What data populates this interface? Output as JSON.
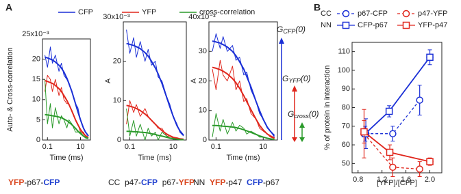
{
  "panel_labels": [
    "A",
    "B"
  ],
  "captions": [
    [
      {
        "text": "YFP",
        "color": "#d9441c"
      },
      {
        "text": "-p67-"
      },
      {
        "text": "CFP",
        "color": "#1f3fcf"
      }
    ],
    [
      {
        "text": "CC  p47-"
      },
      {
        "text": "CFP",
        "color": "#1f3fcf"
      },
      {
        "text": "  p67-"
      },
      {
        "text": "YFP",
        "color": "#d9441c"
      }
    ],
    [
      {
        "text": "NN  "
      },
      {
        "text": "YFP",
        "color": "#d9441c"
      },
      {
        "text": "-p47  "
      },
      {
        "text": "CFP",
        "color": "#1f3fcf"
      },
      {
        "text": "-p67"
      }
    ]
  ],
  "chart_data": [
    {
      "type": "line",
      "x_label": "Time (ms)",
      "y_label": "Auto- & Cross-correlation",
      "xlog": true,
      "xlim": [
        0.05,
        40
      ],
      "xticks": [
        0.1,
        10
      ],
      "ylim": [
        0,
        25
      ],
      "yticks": [
        0,
        5,
        10,
        15,
        20,
        {
          "value": 25,
          "label": "25x10⁻³"
        }
      ],
      "x": [
        0.07,
        0.1,
        0.15,
        0.2,
        0.3,
        0.5,
        0.7,
        1,
        1.5,
        2,
        3,
        5,
        7,
        10,
        15,
        20,
        30
      ],
      "series": [
        {
          "name": "CFP",
          "color": "#1a2fd6",
          "values": [
            21,
            18,
            23,
            19,
            21,
            17,
            19,
            16,
            15,
            14,
            12,
            9,
            8,
            5,
            3,
            2,
            1
          ]
        },
        {
          "name": "YFP",
          "color": "#e0261c",
          "values": [
            12,
            16,
            15,
            12,
            15,
            11,
            13,
            10,
            9,
            9,
            7,
            5,
            4,
            2,
            2,
            1,
            0.5
          ]
        },
        {
          "name": "cross-correlation",
          "color": "#2a9a2a",
          "values": [
            15,
            4,
            9,
            3,
            8,
            4,
            6,
            5,
            3,
            5,
            4,
            2,
            2,
            2,
            1,
            0.5,
            0.3
          ]
        },
        {
          "color": "#1a2fd6",
          "fit": true,
          "values": [
            20.5,
            20.3,
            20,
            19.8,
            19.3,
            18.5,
            17.8,
            16.8,
            15.3,
            14,
            12,
            9,
            7,
            5,
            3,
            2,
            1
          ]
        },
        {
          "color": "#e0261c",
          "fit": true,
          "values": [
            14.7,
            14.5,
            14.2,
            14,
            13.5,
            12.7,
            12,
            11,
            9.8,
            8.8,
            7.2,
            5,
            3.8,
            2.6,
            1.6,
            1.1,
            0.6
          ]
        },
        {
          "color": "#2a9a2a",
          "fit": true,
          "values": [
            6.3,
            6.2,
            6.1,
            6,
            5.9,
            5.7,
            5.5,
            5.2,
            4.8,
            4.4,
            3.8,
            2.9,
            2.2,
            1.6,
            1,
            0.7,
            0.4
          ]
        }
      ]
    },
    {
      "type": "line",
      "x_label": "Time (ms)",
      "y_label": "A",
      "xlog": true,
      "xlim": [
        0.05,
        40
      ],
      "xticks": [
        0.1,
        10
      ],
      "ylim": [
        0,
        30
      ],
      "yticks": [
        0,
        10,
        20,
        {
          "value": 30,
          "label": "30x10⁻³"
        }
      ],
      "x": [
        0.07,
        0.1,
        0.15,
        0.2,
        0.3,
        0.5,
        0.7,
        1,
        1.5,
        2,
        3,
        5,
        7,
        10,
        15,
        20,
        30
      ],
      "series": [
        {
          "color": "#1a2fd6",
          "values": [
            28,
            22,
            26,
            21,
            25,
            20,
            23,
            19,
            20,
            16,
            15,
            11,
            9,
            6,
            4,
            2,
            1
          ]
        },
        {
          "color": "#e0261c",
          "values": [
            4,
            10,
            7,
            9,
            6,
            8,
            6,
            5,
            4,
            3,
            3,
            1,
            1,
            0.5,
            0.3,
            0.2,
            0
          ]
        },
        {
          "color": "#2a9a2a",
          "values": [
            8,
            1,
            5,
            1,
            4,
            0,
            3,
            1,
            2,
            0,
            2,
            1,
            0.5,
            0.5,
            0.2,
            0.1,
            0
          ]
        },
        {
          "color": "#1a2fd6",
          "fit": true,
          "values": [
            24.5,
            24.3,
            24,
            23.7,
            23.2,
            22.2,
            21.3,
            20,
            18.3,
            16.8,
            14.4,
            10.8,
            8.4,
            6,
            3.6,
            2.4,
            1.2
          ]
        },
        {
          "color": "#e0261c",
          "fit": true,
          "values": [
            8.8,
            8.6,
            8.3,
            8,
            7.5,
            6.6,
            5.9,
            5,
            4,
            3.3,
            2.4,
            1.5,
            1.1,
            0.7,
            0.5,
            0.3,
            0.2
          ]
        },
        {
          "color": "#2a9a2a",
          "fit": true,
          "values": [
            2.2,
            2.2,
            2.1,
            2.1,
            2,
            1.9,
            1.8,
            1.6,
            1.4,
            1.2,
            1,
            0.7,
            0.5,
            0.3,
            0.2,
            0.1,
            0.1
          ]
        }
      ]
    },
    {
      "type": "line",
      "x_label": "Time (ms)",
      "y_label": "A",
      "xlog": true,
      "xlim": [
        0.05,
        40
      ],
      "xticks": [
        0.1,
        10
      ],
      "ylim": [
        0,
        40
      ],
      "yticks": [
        0,
        10,
        20,
        30,
        {
          "value": 40,
          "label": "40x10⁻³"
        }
      ],
      "x": [
        0.07,
        0.1,
        0.15,
        0.2,
        0.3,
        0.5,
        0.7,
        1,
        1.5,
        2,
        3,
        5,
        7,
        10,
        15,
        20,
        30
      ],
      "annotations": [
        {
          "text": "G",
          "sub": "CFP",
          "tail": "(0)"
        },
        {
          "text": "G",
          "sub": "YFP",
          "tail": "(0)"
        },
        {
          "text": "G",
          "sub": "cross",
          "tail": "(0)"
        }
      ],
      "series": [
        {
          "color": "#1a2fd6",
          "values": [
            30,
            36,
            31,
            35,
            30,
            32,
            27,
            28,
            22,
            23,
            17,
            13,
            9,
            7,
            4,
            3,
            1
          ]
        },
        {
          "color": "#e0261c",
          "values": [
            24,
            17,
            27,
            22,
            20,
            25,
            17,
            20,
            13,
            14,
            9,
            7,
            4,
            3,
            2,
            1,
            0.5
          ]
        },
        {
          "color": "#2a9a2a",
          "values": [
            1,
            9,
            3,
            7,
            2,
            6,
            3,
            5,
            4,
            2,
            3,
            2,
            1,
            1,
            0.5,
            0.3,
            0.1
          ]
        },
        {
          "color": "#1a2fd6",
          "fit": true,
          "values": [
            33.5,
            33.2,
            32.8,
            32.3,
            31.5,
            30,
            28.5,
            26.5,
            24,
            21.5,
            18,
            13,
            10,
            7,
            4.3,
            3,
            1.5
          ]
        },
        {
          "color": "#e0261c",
          "fit": true,
          "values": [
            24.6,
            24.3,
            23.8,
            23.3,
            22.4,
            20.8,
            19.4,
            17.5,
            15,
            13,
            10.3,
            7,
            5,
            3.4,
            2,
            1.4,
            0.7
          ]
        },
        {
          "color": "#2a9a2a",
          "fit": true,
          "values": [
            4.9,
            4.9,
            4.8,
            4.7,
            4.6,
            4.4,
            4.2,
            3.9,
            3.5,
            3.1,
            2.6,
            1.9,
            1.4,
            1,
            0.6,
            0.4,
            0.2
          ]
        }
      ]
    },
    {
      "type": "errorbar",
      "x_label": "[YFP]/[CFP]",
      "y_label": "% of protein in interaction",
      "xlim": [
        0.7,
        2.2
      ],
      "xticks": [
        0.8,
        1.2,
        1.6,
        {
          "value": 2,
          "label": "2.0"
        }
      ],
      "ylim": [
        45,
        115
      ],
      "yticks": [
        50,
        60,
        70,
        80,
        90,
        100,
        110
      ],
      "legend_rows": [
        "CC",
        "NN"
      ],
      "series": [
        {
          "name": "p67-CFP",
          "color": "#1a2fd6",
          "marker": "circle",
          "line": "dashed",
          "x": [
            0.93,
            1.38,
            1.83
          ],
          "values": [
            66,
            66,
            84
          ],
          "yerr": [
            8,
            4,
            8
          ],
          "xerr": [
            0.05,
            0.05,
            0.04
          ]
        },
        {
          "name": "p47-YFP",
          "color": "#e0261c",
          "marker": "circle",
          "line": "dashed",
          "x": [
            0.9,
            1.38,
            1.83
          ],
          "values": [
            66,
            48,
            47
          ],
          "yerr": [
            13,
            5,
            4
          ],
          "xerr": [
            0.05,
            0.04,
            0.04
          ]
        },
        {
          "name": "CFP-p67",
          "color": "#1a2fd6",
          "marker": "square",
          "line": "solid",
          "x": [
            0.92,
            1.32,
            2.0
          ],
          "values": [
            66,
            78,
            107
          ],
          "yerr": [
            4,
            3,
            4
          ],
          "xerr": [
            0.05,
            0.04,
            0.06
          ]
        },
        {
          "name": "YFP-p47",
          "color": "#e0261c",
          "marker": "square",
          "line": "solid",
          "x": [
            0.9,
            1.33,
            2.0
          ],
          "values": [
            67,
            56,
            51
          ],
          "yerr": [
            6,
            4,
            2
          ],
          "xerr": [
            0.05,
            0.04,
            0.06
          ]
        }
      ]
    }
  ]
}
